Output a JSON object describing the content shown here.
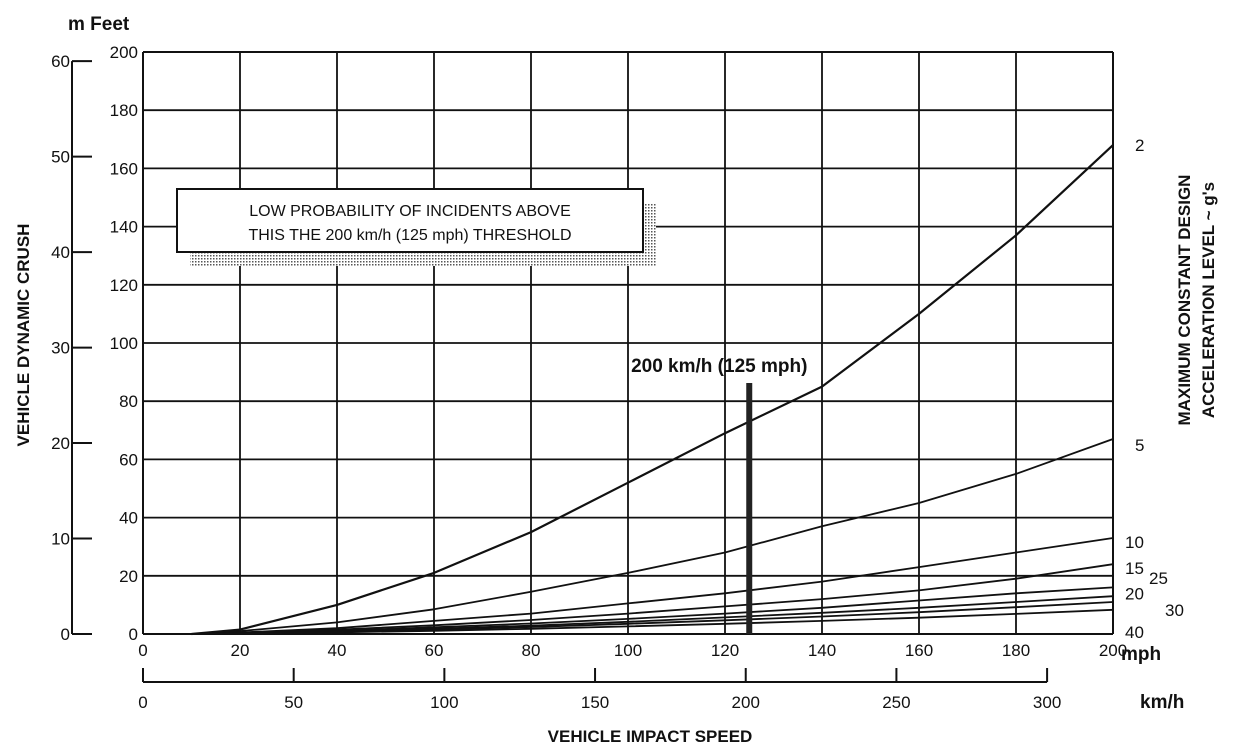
{
  "chart_data": {
    "type": "line",
    "xlabel": "VEHICLE IMPACT SPEED",
    "ylabel": "VEHICLE DYNAMIC CRUSH",
    "right_axis_label_lines": [
      "MAXIMUM CONSTANT DESIGN",
      "ACCELERATION LEVEL ~ g's"
    ],
    "x_unit": "mph",
    "x2_unit": "km/h",
    "y_unit": "Feet",
    "y2_unit": "m",
    "y_unit_label": "m Feet",
    "xlim": [
      0,
      200
    ],
    "ylim": [
      0,
      200
    ],
    "x_ticks": [
      0,
      20,
      40,
      60,
      80,
      100,
      120,
      140,
      160,
      180,
      200
    ],
    "y_ticks": [
      0,
      20,
      40,
      60,
      80,
      100,
      120,
      140,
      160,
      180,
      200
    ],
    "x2_ticks": [
      0,
      50,
      100,
      150,
      200,
      250,
      300
    ],
    "y2_ticks": [
      0,
      10,
      20,
      30,
      40,
      50,
      60
    ],
    "grid": true,
    "series": [
      {
        "name": "2",
        "x": [
          10,
          20,
          40,
          60,
          80,
          100,
          120,
          140,
          160,
          180,
          200
        ],
        "y": [
          0,
          1.5,
          10,
          21,
          35,
          52,
          69,
          85,
          110,
          137,
          168
        ]
      },
      {
        "name": "5",
        "x": [
          10,
          20,
          40,
          60,
          80,
          100,
          120,
          140,
          160,
          180,
          200
        ],
        "y": [
          0,
          1,
          4,
          8.5,
          14.5,
          21,
          28,
          37,
          45,
          55,
          67
        ]
      },
      {
        "name": "10",
        "x": [
          10,
          20,
          40,
          60,
          80,
          100,
          120,
          140,
          160,
          180,
          200
        ],
        "y": [
          0,
          0.5,
          2,
          4.5,
          7,
          10.5,
          14,
          18,
          23,
          28,
          33
        ]
      },
      {
        "name": "15",
        "x": [
          10,
          20,
          40,
          60,
          80,
          100,
          120,
          140,
          160,
          180,
          200
        ],
        "y": [
          0,
          0.4,
          1.5,
          3,
          4.8,
          7,
          9.5,
          12,
          15,
          19,
          24
        ]
      },
      {
        "name": "20",
        "x": [
          10,
          20,
          40,
          60,
          80,
          100,
          120,
          140,
          160,
          180,
          200
        ],
        "y": [
          0,
          0.3,
          1.1,
          2.3,
          3.6,
          5.2,
          7,
          9,
          11.5,
          14,
          16
        ]
      },
      {
        "name": "25",
        "x": [
          10,
          20,
          40,
          60,
          80,
          100,
          120,
          140,
          160,
          180,
          200
        ],
        "y": [
          0,
          0.25,
          0.9,
          1.8,
          2.9,
          4.2,
          5.7,
          7.3,
          9,
          11,
          13
        ]
      },
      {
        "name": "30",
        "x": [
          10,
          20,
          40,
          60,
          80,
          100,
          120,
          140,
          160,
          180,
          200
        ],
        "y": [
          0,
          0.2,
          0.75,
          1.5,
          2.4,
          3.5,
          4.7,
          6,
          7.5,
          9.2,
          11
        ]
      },
      {
        "name": "40",
        "x": [
          10,
          20,
          40,
          60,
          80,
          100,
          120,
          140,
          160,
          180,
          200
        ],
        "y": [
          0,
          0.15,
          0.55,
          1.1,
          1.8,
          2.6,
          3.5,
          4.5,
          5.6,
          6.9,
          8.3
        ]
      }
    ],
    "threshold": {
      "x": 125,
      "label": "200 km/h (125 mph)"
    },
    "annotation_lines": [
      "LOW PROBABILITY OF INCIDENTS ABOVE",
      "THIS THE 200 km/h (125 mph) THRESHOLD"
    ]
  }
}
